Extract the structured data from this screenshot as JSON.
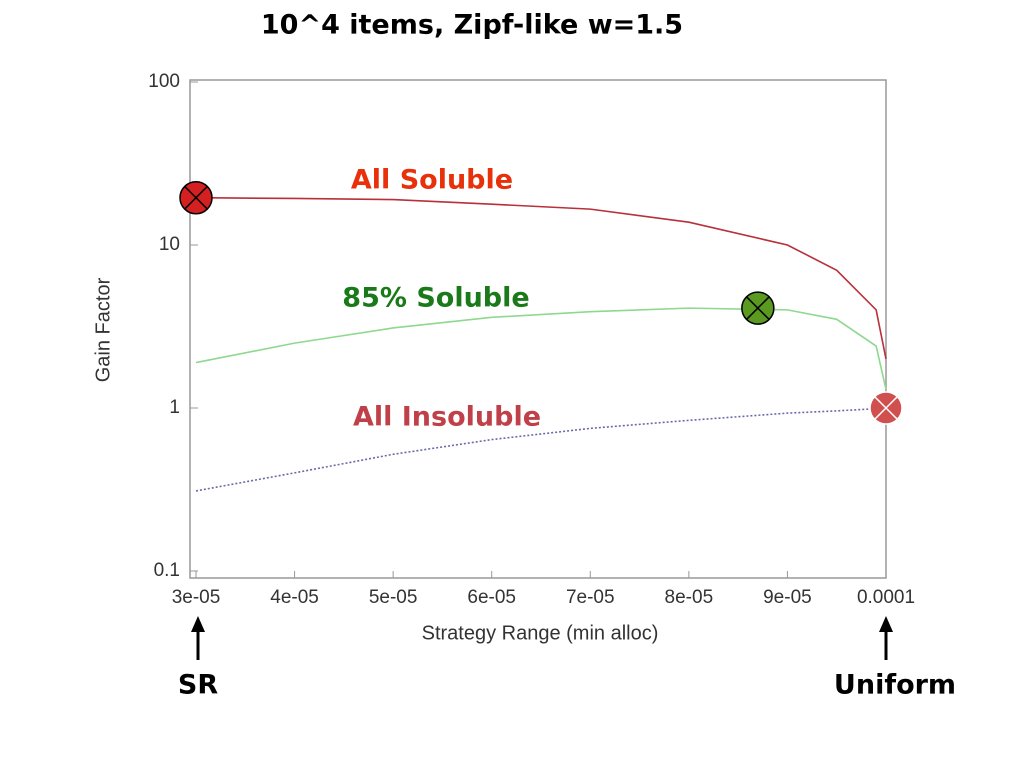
{
  "chart_data": {
    "type": "line",
    "title": "10^4 items, Zipf-like w=1.5",
    "x_label": "Strategy Range (min alloc)",
    "y_label": "Gain Factor",
    "log_y": true,
    "x": [
      3e-05,
      4e-05,
      5e-05,
      6e-05,
      7e-05,
      8e-05,
      9e-05,
      9.5e-05,
      9.9e-05,
      0.0001
    ],
    "series": [
      {
        "name": "All Soluble",
        "color": "#b8303a",
        "values": [
          19.5,
          19.3,
          19,
          17.8,
          16.6,
          13.8,
          10,
          7,
          4,
          2
        ]
      },
      {
        "name": "85% Soluble",
        "color": "#8fd88f",
        "values": [
          1.9,
          2.5,
          3.1,
          3.6,
          3.9,
          4.1,
          4,
          3.5,
          2.4,
          1.3
        ]
      },
      {
        "name": "All Insoluble",
        "color": "#6a6aaa",
        "values": [
          0.31,
          0.4,
          0.52,
          0.64,
          0.75,
          0.84,
          0.93,
          0.96,
          0.99,
          1
        ]
      }
    ],
    "markers": [
      {
        "x": 3e-05,
        "y": 19.5,
        "color": "#d42020"
      },
      {
        "x": 8.7e-05,
        "y": 4.1,
        "color": "#5a9a20"
      },
      {
        "x": 0.0001,
        "y": 1,
        "color": "#d05050"
      }
    ],
    "annotations": [
      {
        "text": "All Soluble",
        "color": "#e8300a"
      },
      {
        "text": "85% Soluble",
        "color": "#1a7a1a"
      },
      {
        "text": "All Insoluble",
        "color": "#c0404a"
      },
      {
        "text": "SR",
        "color": "#000000"
      },
      {
        "text": "Uniform",
        "color": "#000000"
      }
    ],
    "xlim": [
      3e-05,
      0.0001
    ],
    "ylim": [
      0.1,
      100
    ],
    "xticks": [
      {
        "value": 3e-05,
        "label": "3e-05"
      },
      {
        "value": 4e-05,
        "label": "4e-05"
      },
      {
        "value": 5e-05,
        "label": "5e-05"
      },
      {
        "value": 6e-05,
        "label": "6e-05"
      },
      {
        "value": 7e-05,
        "label": "7e-05"
      },
      {
        "value": 8e-05,
        "label": "8e-05"
      },
      {
        "value": 9e-05,
        "label": "9e-05"
      },
      0.0001
    ],
    "yticks": [
      0.1,
      1,
      10,
      100
    ]
  }
}
